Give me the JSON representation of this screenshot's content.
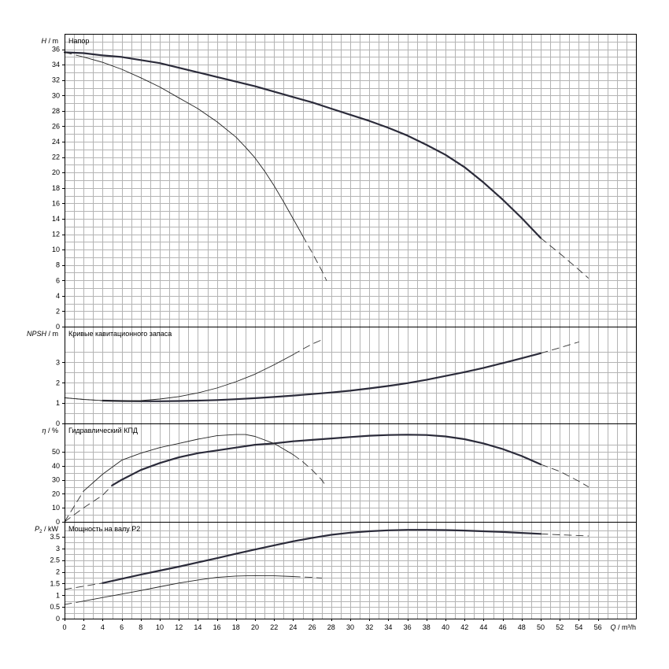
{
  "chart_data": [
    {
      "type": "line",
      "title": "Напор",
      "ylabel_symbol": "H",
      "ylabel_unit": "m",
      "xlim": [
        0,
        60
      ],
      "ylim": [
        0,
        38
      ],
      "yticks": [
        0,
        2,
        4,
        6,
        8,
        10,
        12,
        14,
        16,
        18,
        20,
        22,
        24,
        26,
        28,
        30,
        32,
        34,
        36
      ],
      "series": [
        {
          "weight": "bold",
          "points": [
            [
              0,
              35.6
            ],
            [
              2,
              35.5
            ],
            [
              4,
              35.2
            ],
            [
              6,
              35.0
            ],
            [
              8,
              34.6
            ],
            [
              10,
              34.2
            ],
            [
              12,
              33.6
            ],
            [
              14,
              33.0
            ],
            [
              16,
              32.4
            ],
            [
              18,
              31.8
            ],
            [
              20,
              31.2
            ],
            [
              22,
              30.5
            ],
            [
              24,
              29.8
            ],
            [
              26,
              29.1
            ],
            [
              28,
              28.3
            ],
            [
              30,
              27.5
            ],
            [
              32,
              26.7
            ],
            [
              34,
              25.8
            ],
            [
              36,
              24.8
            ],
            [
              38,
              23.6
            ],
            [
              40,
              22.3
            ],
            [
              42,
              20.7
            ],
            [
              44,
              18.7
            ],
            [
              46,
              16.5
            ],
            [
              48,
              14.1
            ],
            [
              50,
              11.5
            ],
            [
              52,
              9.5
            ],
            [
              54,
              7.4
            ],
            [
              55,
              6.3
            ]
          ],
          "dashed_from": 50
        },
        {
          "weight": "thin",
          "points": [
            [
              0,
              35.6
            ],
            [
              2,
              35.0
            ],
            [
              4,
              34.3
            ],
            [
              6,
              33.4
            ],
            [
              8,
              32.3
            ],
            [
              10,
              31.1
            ],
            [
              12,
              29.7
            ],
            [
              14,
              28.3
            ],
            [
              16,
              26.6
            ],
            [
              18,
              24.6
            ],
            [
              19,
              23.3
            ],
            [
              20,
              21.9
            ],
            [
              21,
              20.2
            ],
            [
              22,
              18.3
            ],
            [
              23,
              16.2
            ],
            [
              24,
              14.0
            ],
            [
              25,
              11.8
            ],
            [
              26,
              9.6
            ],
            [
              27,
              7.3
            ],
            [
              27.5,
              6.0
            ]
          ],
          "dashed_from": 25,
          "dashed_to": 2
        }
      ]
    },
    {
      "type": "line",
      "title": "Кривые кавитационного запаса",
      "ylabel_symbol": "NPSH",
      "ylabel_unit": "m",
      "xlim": [
        0,
        60
      ],
      "ylim": [
        0,
        4.6
      ],
      "yticks": [
        0,
        1,
        2,
        3
      ],
      "series": [
        {
          "weight": "bold",
          "points": [
            [
              0,
              1.26
            ],
            [
              2,
              1.18
            ],
            [
              4,
              1.12
            ],
            [
              6,
              1.1
            ],
            [
              8,
              1.09
            ],
            [
              10,
              1.09
            ],
            [
              12,
              1.1
            ],
            [
              14,
              1.12
            ],
            [
              16,
              1.15
            ],
            [
              18,
              1.19
            ],
            [
              20,
              1.24
            ],
            [
              22,
              1.3
            ],
            [
              24,
              1.37
            ],
            [
              26,
              1.44
            ],
            [
              28,
              1.52
            ],
            [
              30,
              1.61
            ],
            [
              32,
              1.72
            ],
            [
              34,
              1.84
            ],
            [
              36,
              1.98
            ],
            [
              38,
              2.14
            ],
            [
              40,
              2.33
            ],
            [
              42,
              2.52
            ],
            [
              44,
              2.73
            ],
            [
              46,
              2.96
            ],
            [
              48,
              3.2
            ],
            [
              50,
              3.45
            ],
            [
              52,
              3.72
            ],
            [
              54,
              4.0
            ]
          ],
          "dashed_from": 50,
          "dashed_to": 4
        },
        {
          "weight": "thin",
          "points": [
            [
              0,
              1.26
            ],
            [
              2,
              1.18
            ],
            [
              4,
              1.12
            ],
            [
              6,
              1.1
            ],
            [
              8,
              1.12
            ],
            [
              10,
              1.2
            ],
            [
              12,
              1.32
            ],
            [
              14,
              1.5
            ],
            [
              16,
              1.74
            ],
            [
              18,
              2.05
            ],
            [
              20,
              2.42
            ],
            [
              22,
              2.88
            ],
            [
              24,
              3.38
            ],
            [
              25,
              3.65
            ],
            [
              26,
              3.9
            ],
            [
              27,
              4.1
            ]
          ],
          "dashed_from": 24
        }
      ]
    },
    {
      "type": "line",
      "title": "Гидравлический КПД",
      "ylabel_symbol": "η",
      "ylabel_unit": "%",
      "xlim": [
        0,
        60
      ],
      "ylim": [
        0,
        68
      ],
      "yticks": [
        0,
        10,
        20,
        30,
        40,
        50
      ],
      "series": [
        {
          "weight": "bold",
          "points": [
            [
              0,
              0
            ],
            [
              2,
              10
            ],
            [
              4,
              19
            ],
            [
              5,
              26
            ],
            [
              6,
              30
            ],
            [
              8,
              37
            ],
            [
              10,
              42
            ],
            [
              12,
              46
            ],
            [
              14,
              49
            ],
            [
              16,
              51
            ],
            [
              18,
              53
            ],
            [
              20,
              55
            ],
            [
              22,
              56
            ],
            [
              24,
              57.5
            ],
            [
              26,
              58.5
            ],
            [
              28,
              59.5
            ],
            [
              30,
              60.5
            ],
            [
              32,
              61.5
            ],
            [
              34,
              62
            ],
            [
              36,
              62.2
            ],
            [
              38,
              62
            ],
            [
              40,
              61
            ],
            [
              42,
              59
            ],
            [
              44,
              56
            ],
            [
              46,
              52
            ],
            [
              48,
              47
            ],
            [
              50,
              41
            ],
            [
              52,
              36
            ],
            [
              54,
              29
            ],
            [
              55,
              25
            ]
          ],
          "dashed_from": 50,
          "dashed_to": 5
        },
        {
          "weight": "thin",
          "points": [
            [
              0,
              0
            ],
            [
              2,
              22
            ],
            [
              4,
              34
            ],
            [
              6,
              44
            ],
            [
              8,
              49
            ],
            [
              10,
              53
            ],
            [
              12,
              56
            ],
            [
              14,
              59
            ],
            [
              16,
              61.5
            ],
            [
              18,
              62.3
            ],
            [
              19,
              62.3
            ],
            [
              20,
              61
            ],
            [
              22,
              56
            ],
            [
              24,
              48
            ],
            [
              25,
              43
            ],
            [
              26,
              37
            ],
            [
              27,
              30
            ],
            [
              27.5,
              25
            ]
          ],
          "dashed_from": 24,
          "dashed_to": 2
        }
      ]
    },
    {
      "type": "line",
      "title": "Мощность на валу P2",
      "ylabel_symbol": "P",
      "ylabel_subscript": "2",
      "ylabel_unit": "kW",
      "xlabel_symbol": "Q",
      "xlabel_unit": "m³/h",
      "xlim": [
        0,
        60
      ],
      "ylim": [
        0,
        4.0
      ],
      "yticks": [
        0,
        0.5,
        1,
        1.5,
        2,
        2.5,
        3,
        3.5
      ],
      "xticks": [
        0,
        2,
        4,
        6,
        8,
        10,
        12,
        14,
        16,
        18,
        20,
        22,
        24,
        26,
        28,
        30,
        32,
        34,
        36,
        38,
        40,
        42,
        44,
        46,
        48,
        50,
        52,
        54,
        56
      ],
      "series": [
        {
          "weight": "bold",
          "points": [
            [
              0,
              1.25
            ],
            [
              2,
              1.38
            ],
            [
              4,
              1.52
            ],
            [
              6,
              1.7
            ],
            [
              8,
              1.88
            ],
            [
              10,
              2.05
            ],
            [
              12,
              2.22
            ],
            [
              14,
              2.4
            ],
            [
              16,
              2.58
            ],
            [
              18,
              2.77
            ],
            [
              20,
              2.95
            ],
            [
              22,
              3.13
            ],
            [
              24,
              3.3
            ],
            [
              26,
              3.45
            ],
            [
              28,
              3.58
            ],
            [
              30,
              3.67
            ],
            [
              32,
              3.73
            ],
            [
              34,
              3.77
            ],
            [
              36,
              3.79
            ],
            [
              38,
              3.79
            ],
            [
              40,
              3.78
            ],
            [
              42,
              3.76
            ],
            [
              44,
              3.73
            ],
            [
              46,
              3.7
            ],
            [
              48,
              3.66
            ],
            [
              50,
              3.62
            ],
            [
              52,
              3.58
            ],
            [
              54,
              3.55
            ],
            [
              55,
              3.53
            ]
          ],
          "dashed_from": 50,
          "dashed_to": 4
        },
        {
          "weight": "thin",
          "points": [
            [
              0,
              0.6
            ],
            [
              2,
              0.75
            ],
            [
              4,
              0.9
            ],
            [
              6,
              1.05
            ],
            [
              8,
              1.2
            ],
            [
              10,
              1.36
            ],
            [
              12,
              1.52
            ],
            [
              14,
              1.65
            ],
            [
              16,
              1.76
            ],
            [
              18,
              1.82
            ],
            [
              20,
              1.84
            ],
            [
              22,
              1.83
            ],
            [
              24,
              1.8
            ],
            [
              26,
              1.76
            ],
            [
              27,
              1.73
            ]
          ],
          "dashed_from": 24,
          "dashed_to": 2
        }
      ]
    }
  ]
}
